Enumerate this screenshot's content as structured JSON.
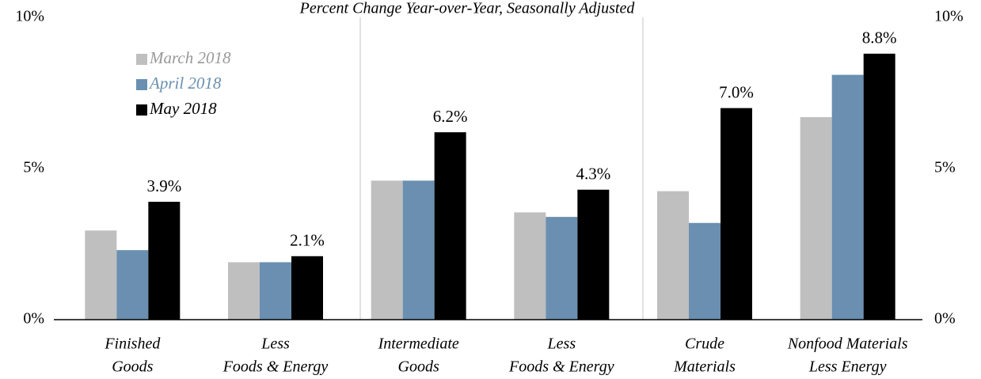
{
  "chart_data": {
    "type": "bar",
    "title": "Percent Change Year-over-Year, Seasonally Adjusted",
    "categories": [
      [
        "Finished",
        "Goods"
      ],
      [
        "Less",
        "Foods & Energy"
      ],
      [
        "Intermediate",
        "Goods"
      ],
      [
        "Less",
        "Foods & Energy"
      ],
      [
        "Crude",
        "Materials"
      ],
      [
        "Nonfood Materials",
        "Less Energy"
      ]
    ],
    "series": [
      {
        "name": "March 2018",
        "color": "#bfbfbf",
        "values": [
          2.95,
          1.9,
          4.6,
          3.55,
          4.25,
          6.7
        ]
      },
      {
        "name": "April 2018",
        "color": "#6a8fb0",
        "values": [
          2.3,
          1.9,
          4.6,
          3.4,
          3.2,
          8.1
        ]
      },
      {
        "name": "May 2018",
        "color": "#000000",
        "values": [
          3.9,
          2.1,
          6.2,
          4.3,
          7.0,
          8.8
        ],
        "value_labels": [
          "3.9%",
          "2.1%",
          "6.2%",
          "4.3%",
          "7.0%",
          "8.8%"
        ]
      }
    ],
    "ylim": [
      0,
      10
    ],
    "yticks": [
      {
        "value": 0,
        "label": "0%"
      },
      {
        "value": 5,
        "label": "5%"
      },
      {
        "value": 10,
        "label": "10%"
      }
    ],
    "y2lim": [
      0,
      10
    ],
    "y2ticks": [
      {
        "value": 0,
        "label": "0%"
      },
      {
        "value": 5,
        "label": "5%"
      },
      {
        "value": 10,
        "label": "10%"
      }
    ],
    "legend": "upper left"
  }
}
